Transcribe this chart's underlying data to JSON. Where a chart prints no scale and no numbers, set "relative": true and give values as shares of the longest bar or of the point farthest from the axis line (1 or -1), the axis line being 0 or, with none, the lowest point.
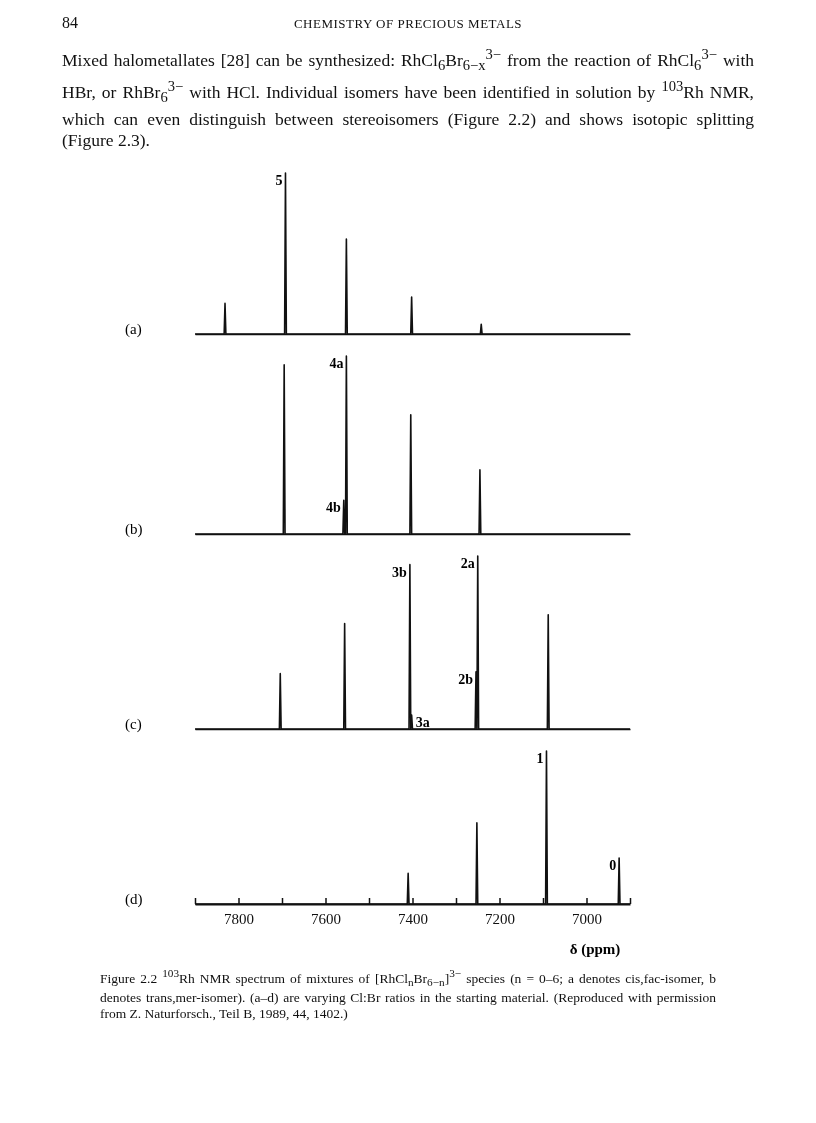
{
  "chart_data": [
    {
      "type": "line",
      "title": "(a)",
      "relative": true,
      "xlim": [
        7900,
        6900
      ],
      "tick_labels": false,
      "annotations": [
        "84",
        "CHEMISTRY OF PRECIOUS METALS",
        "Mixed halometallates [28] can be synthesized: RhCl$_{6}$Br$_{6−x}$$^{3−}$ from the reaction of RhCl$_{6}$$^{3−}$ with HBr, or RhBr$_{6}$$^{3−}$ with HCl. Individual isomers have been identified in solution by $^{103}$Rh NMR, which can even distinguish between stereoisomers (Figure 2.2) and shows isotopic splitting (Figure 2.3).",
        {
          "text": "5",
          "x": 7692,
          "y": 1
        }
      ],
      "x": [
        7900,
        7833,
        7831,
        7829,
        7694,
        7692,
        7690,
        7554,
        7552,
        7550,
        7404,
        7402,
        7400,
        7244,
        7242,
        7240,
        6900
      ],
      "series": [
        {
          "color": "#111111",
          "values": [
            0,
            0,
            0.19,
            0,
            0,
            1,
            0,
            0,
            0.59,
            0,
            0,
            0.23,
            0,
            0,
            0.06,
            0,
            0
          ]
        }
      ]
    },
    {
      "type": "line",
      "title": "(b)",
      "relative": true,
      "xlim": [
        7900,
        6900
      ],
      "tick_labels": false,
      "annotations": [
        {
          "text": "4a",
          "x": 7552,
          "y": 1
        },
        {
          "text": "4b",
          "x": 7558,
          "y": 0.19
        }
      ],
      "x": [
        7900,
        7697,
        7695,
        7693,
        7560,
        7558,
        7556,
        7554,
        7552,
        7550,
        7406,
        7404,
        7402,
        7247,
        7245,
        7243,
        6900
      ],
      "series": [
        {
          "color": "#111111",
          "values": [
            0,
            0,
            0.95,
            0,
            0,
            0.19,
            0,
            0,
            1,
            0,
            0,
            0.67,
            0,
            0,
            0.36,
            0,
            0
          ]
        }
      ]
    },
    {
      "type": "line",
      "title": "(c)",
      "relative": true,
      "xlim": [
        7900,
        6900
      ],
      "tick_labels": false,
      "annotations": [
        {
          "text": "3b",
          "x": 7406,
          "y": 0.95
        },
        {
          "text": "3a",
          "x": 7402,
          "y": 0.08
        },
        {
          "text": "2b",
          "x": 7254,
          "y": 0.33
        },
        {
          "text": "2a",
          "x": 7250,
          "y": 1
        }
      ],
      "x": [
        7900,
        7706,
        7704,
        7702,
        7558,
        7556,
        7554,
        7408,
        7406,
        7404,
        7402,
        7400,
        7256,
        7254,
        7252,
        7250,
        7248,
        7090,
        7088,
        7086,
        6900
      ],
      "series": [
        {
          "color": "#111111",
          "values": [
            0,
            0,
            0.32,
            0,
            0,
            0.61,
            0,
            0,
            0.95,
            0,
            0.08,
            0,
            0,
            0.33,
            0,
            1,
            0,
            0,
            0.66,
            0,
            0
          ]
        }
      ]
    },
    {
      "type": "line",
      "title": "(d)",
      "relative": true,
      "xlim": [
        7900,
        6900
      ],
      "tick_labels": "x",
      "xlabel": "δ (ppm)",
      "xticks": [
        {
          "value": 7900,
          "label": null
        },
        7800,
        {
          "value": 7700,
          "label": null
        },
        7600,
        {
          "value": 7500,
          "label": null
        },
        7400,
        {
          "value": 7300,
          "label": null
        },
        7200,
        {
          "value": 7100,
          "label": null
        },
        7000,
        {
          "value": 6900,
          "label": null
        }
      ],
      "annotations": [
        {
          "text": "1",
          "x": 7092,
          "y": 1
        },
        {
          "text": "0",
          "x": 6925,
          "y": 0.3
        },
        "Figure 2.2 $^{103}$Rh NMR spectrum of mixtures of [RhCl$_{n}$Br$_{6−n}$]$^{3−}$ species (n = 0–6; a denotes cis,fac-isomer, b denotes trans,mer-isomer). (a–d) are varying Cl:Br ratios in the starting material. (Reproduced with permission from Z. Naturforsch., Teil B, 1989, 44, 1402.)"
      ],
      "x": [
        7900,
        7412,
        7410,
        7408,
        7254,
        7252,
        7250,
        7094,
        7092,
        7090,
        6927,
        6925,
        6923,
        6900
      ],
      "series": [
        {
          "color": "#111111",
          "values": [
            0,
            0,
            0.2,
            0,
            0,
            0.53,
            0,
            0,
            1,
            0,
            0,
            0.3,
            0,
            0
          ]
        }
      ]
    }
  ]
}
